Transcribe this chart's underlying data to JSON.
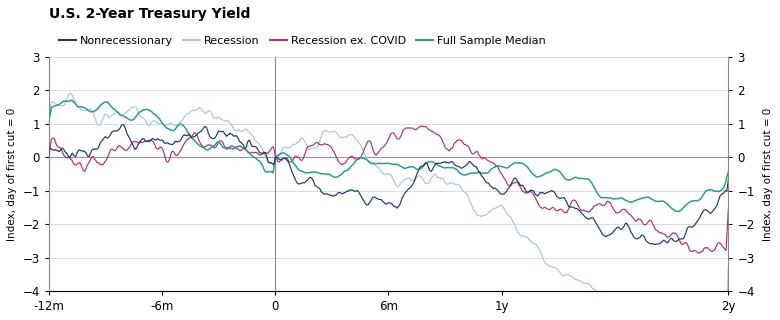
{
  "title": "U.S. 2-Year Treasury Yield",
  "ylabel_left": "Index, day of first cut = 0",
  "ylabel_right": "Index, day of first cut = 0",
  "xlim": [
    -365,
    730
  ],
  "ylim": [
    -4,
    3
  ],
  "yticks": [
    -4,
    -3,
    -2,
    -1,
    0,
    1,
    2,
    3
  ],
  "xtick_positions": [
    -365,
    -182,
    0,
    182,
    365,
    730
  ],
  "xtick_labels": [
    "-12m",
    "-6m",
    "0",
    "6m",
    "1y",
    "2y"
  ],
  "colors": {
    "nonrecessionary": "#1a3a6b",
    "recession": "#a8c4e0",
    "recession_ex_covid": "#b0306a",
    "full_sample_median": "#2a9d8f"
  },
  "legend_labels": [
    "Nonrecessionary",
    "Recession",
    "Recession ex. COVID",
    "Full Sample Median"
  ],
  "background_color": "#ffffff",
  "grid_color": "#cccccc"
}
